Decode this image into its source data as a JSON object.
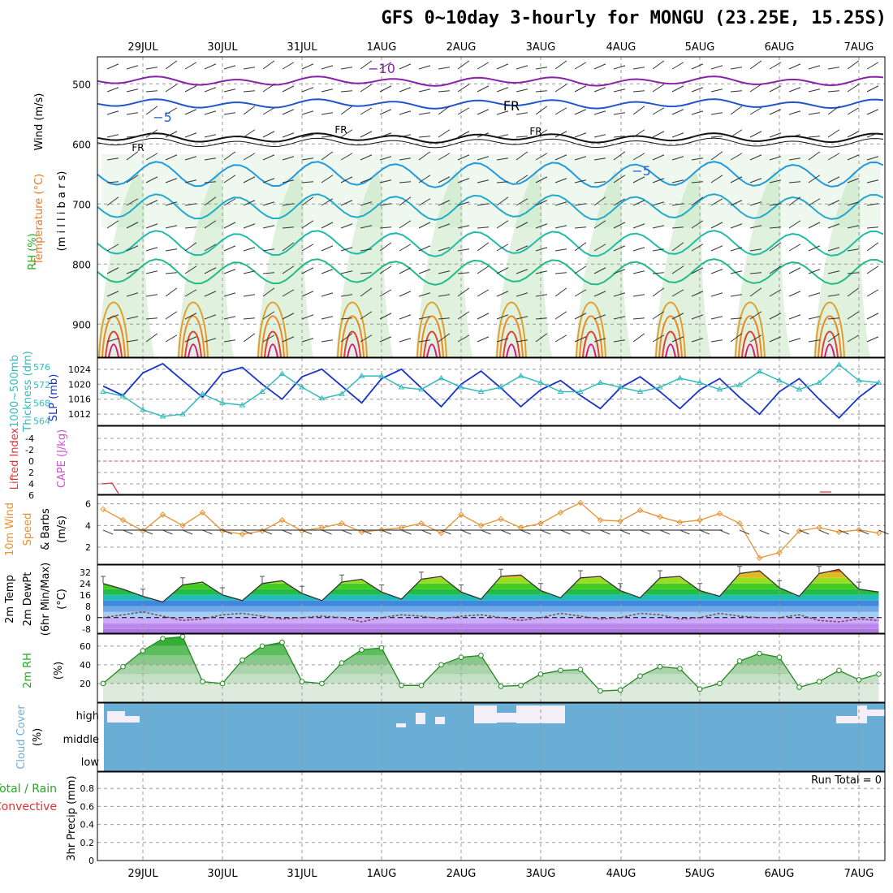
{
  "title": "GFS 0~10day 3-hourly for MONGU (23.25E, 15.25S)",
  "days": [
    "29JUL",
    "30JUL",
    "31JUL",
    "1AUG",
    "2AUG",
    "3AUG",
    "4AUG",
    "5AUG",
    "6AUG",
    "7AUG"
  ],
  "colors": {
    "frame": "#000000",
    "grid": "#9a9a9a",
    "cloud": "#6aaed6",
    "rh_fill": "#a6d9a0",
    "thickness": "#33bbbb",
    "slp": "#1a33cc",
    "wind10": "#e8902e",
    "temp_warm": "#ee7722",
    "dewpoint": "#7a4a44",
    "cape_label": "#cc55cc",
    "li_label": "#dd3333"
  },
  "panels": {
    "upper": {
      "labels": {
        "wind": "Wind (m/s)",
        "temperature": "Temperature (°C)",
        "rh": "RH (%)",
        "pressure": "(m i l l i b a r s)"
      },
      "ticks": [
        "500",
        "600",
        "700",
        "800",
        "900"
      ],
      "contour_labels": [
        "−10",
        "−5",
        "FR",
        "FR",
        "FR",
        "FR",
        "−5"
      ]
    },
    "slp": {
      "labels": {
        "thickness": "1000~500mb Thickness (dm)",
        "slp": "SLP (mb)"
      },
      "left_ticks": [
        "576",
        "572",
        "568",
        "564"
      ],
      "right_ticks": [
        "1024",
        "1020",
        "1016",
        "1012"
      ]
    },
    "cape": {
      "labels": {
        "li": "Lifted Index",
        "cape": "CAPE (J/kg)"
      },
      "ticks": [
        "-4",
        "-2",
        "0",
        "2",
        "4",
        "6"
      ]
    },
    "wind10": {
      "labels": {
        "line1": "10m Wind",
        "line2": "Speed",
        "line3": "& Barbs",
        "units": "(m/s)"
      },
      "ticks": [
        "6",
        "4",
        "2"
      ]
    },
    "temp2m": {
      "labels": {
        "line1": "2m Temp",
        "line2": "2m DewPt",
        "line3": "(6hr Min/Max)",
        "units": "(°C)"
      },
      "ticks": [
        "32",
        "24",
        "16",
        "8",
        "0",
        "-8"
      ]
    },
    "rh2m": {
      "labels": {
        "line1": "2m RH",
        "units": "(%)"
      },
      "ticks": [
        "60",
        "40",
        "20"
      ]
    },
    "cloud": {
      "labels": {
        "line1": "Cloud Cover",
        "units": "(%)"
      },
      "levels": [
        "high",
        "middle",
        "low"
      ]
    },
    "precip": {
      "labels": {
        "line1": "Total / Rain",
        "line2": "Convective",
        "line3": "3hr Precip (mm)"
      },
      "ticks": [
        "0.8",
        "0.6",
        "0.4",
        "0.2",
        "0"
      ],
      "run_total": "Run Total = 0"
    }
  },
  "chart_data": [
    {
      "type": "line",
      "panel": "slp",
      "title": "",
      "x": [
        "28JUL12",
        "28JUL18",
        "29JUL00",
        "29JUL06",
        "29JUL12",
        "29JUL18",
        "30JUL00",
        "30JUL06",
        "30JUL12",
        "30JUL18",
        "31JUL00",
        "31JUL06",
        "31JUL12",
        "31JUL18",
        "1AUG00",
        "1AUG06",
        "1AUG12",
        "1AUG18",
        "2AUG00",
        "2AUG06",
        "2AUG12",
        "2AUG18",
        "3AUG00",
        "3AUG06",
        "3AUG12",
        "3AUG18",
        "4AUG00",
        "4AUG06",
        "4AUG12",
        "4AUG18",
        "5AUG00",
        "5AUG06",
        "5AUG12",
        "5AUG18",
        "6AUG00",
        "6AUG06",
        "6AUG12",
        "6AUG18",
        "7AUG00",
        "7AUG06"
      ],
      "series": [
        {
          "name": "SLP (mb)",
          "axis": "right",
          "values": [
            1019.5,
            1017,
            1023,
            1025.5,
            1021,
            1016.5,
            1023,
            1024.5,
            1020,
            1016,
            1022,
            1024,
            1019.5,
            1015,
            1021.5,
            1024,
            1019,
            1014,
            1020,
            1023.5,
            1019,
            1014,
            1018.5,
            1021,
            1017,
            1013.5,
            1019,
            1022,
            1018,
            1013.5,
            1018.5,
            1021.5,
            1016.5,
            1012,
            1018,
            1021.5,
            1016,
            1011,
            1016.5,
            1020.5
          ]
        },
        {
          "name": "Thickness (dm)",
          "axis": "left",
          "values": [
            570.5,
            569.5,
            566.5,
            565,
            565.5,
            570,
            568,
            567.5,
            570.5,
            574.5,
            571.5,
            569,
            570,
            574,
            574,
            571.5,
            571,
            573.5,
            571.5,
            570.5,
            571.5,
            574,
            572.5,
            570.5,
            570.5,
            572.5,
            571.5,
            570.5,
            571.5,
            573.5,
            572.5,
            571,
            572,
            575,
            573,
            571,
            572.5,
            576.5,
            573,
            572.5
          ]
        }
      ],
      "ylim_left": [
        563,
        578
      ],
      "ylim_right": [
        1009,
        1027
      ]
    },
    {
      "type": "line",
      "panel": "wind10",
      "title": "",
      "x": [
        "28JUL12",
        "28JUL18",
        "29JUL00",
        "29JUL06",
        "29JUL12",
        "29JUL18",
        "30JUL00",
        "30JUL06",
        "30JUL12",
        "30JUL18",
        "31JUL00",
        "31JUL06",
        "31JUL12",
        "31JUL18",
        "1AUG00",
        "1AUG06",
        "1AUG12",
        "1AUG18",
        "2AUG00",
        "2AUG06",
        "2AUG12",
        "2AUG18",
        "3AUG00",
        "3AUG06",
        "3AUG12",
        "3AUG18",
        "4AUG00",
        "4AUG06",
        "4AUG12",
        "4AUG18",
        "5AUG00",
        "5AUG06",
        "5AUG12",
        "5AUG18",
        "6AUG00",
        "6AUG06",
        "6AUG12",
        "6AUG18",
        "7AUG00",
        "7AUG06"
      ],
      "series": [
        {
          "name": "10m Wind Speed",
          "values": [
            5.5,
            4.5,
            3.5,
            5,
            4,
            5.2,
            3.5,
            3.2,
            3.5,
            4.5,
            3.5,
            3.8,
            4.2,
            3.4,
            3.6,
            3.8,
            4.2,
            3.3,
            5,
            4,
            4.6,
            3.8,
            4.2,
            5.2,
            6.1,
            4.5,
            4.4,
            5.4,
            4.8,
            4.3,
            4.5,
            5.1,
            4.2,
            1,
            1.5,
            3.5,
            3.8,
            3.4,
            3.6,
            3.3
          ]
        }
      ],
      "ylim": [
        0.5,
        6.8
      ]
    },
    {
      "type": "area",
      "panel": "temp2m",
      "title": "",
      "x": [
        "28JUL12",
        "28JUL18",
        "29JUL00",
        "29JUL06",
        "29JUL12",
        "29JUL18",
        "30JUL00",
        "30JUL06",
        "30JUL12",
        "30JUL18",
        "31JUL00",
        "31JUL06",
        "31JUL12",
        "31JUL18",
        "1AUG00",
        "1AUG06",
        "1AUG12",
        "1AUG18",
        "2AUG00",
        "2AUG06",
        "2AUG12",
        "2AUG18",
        "3AUG00",
        "3AUG06",
        "3AUG12",
        "3AUG18",
        "4AUG00",
        "4AUG06",
        "4AUG12",
        "4AUG18",
        "5AUG00",
        "5AUG06",
        "5AUG12",
        "5AUG18",
        "6AUG00",
        "6AUG06",
        "6AUG12",
        "6AUG18",
        "7AUG00",
        "7AUG06"
      ],
      "series": [
        {
          "name": "2m Temp",
          "values": [
            24,
            20,
            15,
            11,
            23,
            25,
            16,
            12,
            24,
            26,
            17,
            12,
            25,
            27,
            18,
            13,
            27,
            29,
            18,
            13,
            29,
            30,
            19,
            14,
            28,
            29,
            19,
            14,
            28,
            29,
            19,
            15,
            31,
            33,
            21,
            15,
            31,
            34,
            20,
            18
          ]
        },
        {
          "name": "2m DewPt",
          "values": [
            0,
            2,
            4,
            1,
            -2,
            -1,
            2,
            3,
            1,
            -1,
            0,
            1,
            0,
            -3,
            0,
            2,
            1,
            -1,
            1,
            2,
            0,
            -2,
            0,
            3,
            1,
            -1,
            0,
            3,
            2,
            -1,
            0,
            3,
            1,
            0,
            0,
            2,
            -2,
            -3,
            -1,
            -2
          ]
        }
      ],
      "ylim": [
        -11,
        37
      ]
    },
    {
      "type": "area",
      "panel": "rh2m",
      "title": "",
      "x": [
        "28JUL12",
        "28JUL18",
        "29JUL00",
        "29JUL06",
        "29JUL12",
        "29JUL18",
        "30JUL00",
        "30JUL06",
        "30JUL12",
        "30JUL18",
        "31JUL00",
        "31JUL06",
        "31JUL12",
        "31JUL18",
        "1AUG00",
        "1AUG06",
        "1AUG12",
        "1AUG18",
        "2AUG00",
        "2AUG06",
        "2AUG12",
        "2AUG18",
        "3AUG00",
        "3AUG06",
        "3AUG12",
        "3AUG18",
        "4AUG00",
        "4AUG06",
        "4AUG12",
        "4AUG18",
        "5AUG00",
        "5AUG06",
        "5AUG12",
        "5AUG18",
        "6AUG00",
        "6AUG06",
        "6AUG12",
        "6AUG18",
        "7AUG00",
        "7AUG06"
      ],
      "series": [
        {
          "name": "2m RH",
          "values": [
            20,
            38,
            55,
            68,
            70,
            22,
            20,
            45,
            60,
            64,
            22,
            20,
            42,
            56,
            58,
            18,
            18,
            40,
            48,
            50,
            17,
            18,
            30,
            34,
            35,
            12,
            13,
            28,
            38,
            36,
            14,
            20,
            44,
            52,
            48,
            16,
            22,
            34,
            24,
            30
          ]
        }
      ],
      "ylim": [
        0,
        72
      ]
    },
    {
      "type": "bar",
      "panel": "precip",
      "title": "",
      "categories": [],
      "values": [],
      "ylim": [
        0,
        1
      ]
    }
  ]
}
